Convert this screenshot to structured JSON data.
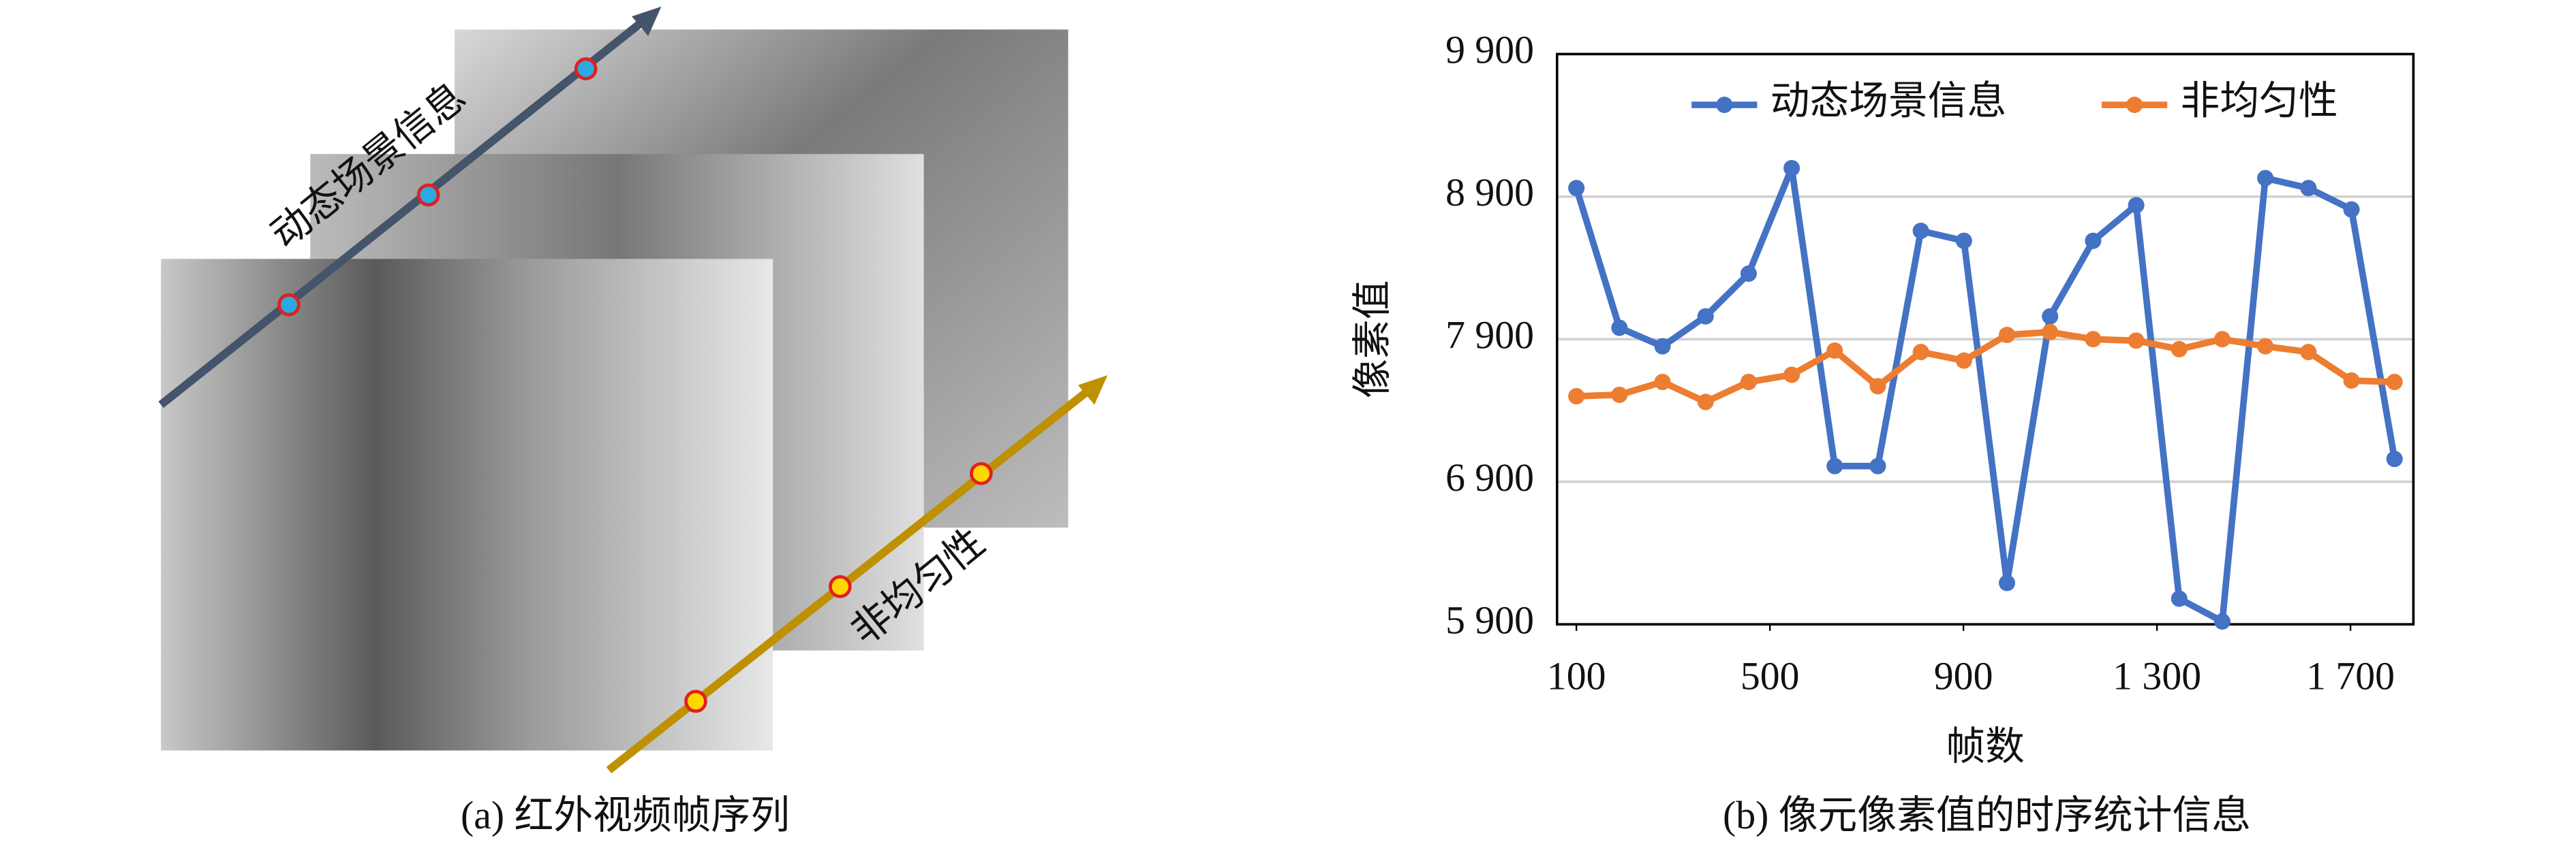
{
  "panel_a": {
    "arrow_labels": [
      "动态场景信息",
      "非均匀性"
    ],
    "caption": "(a) 红外视频帧序列"
  },
  "chart_data": {
    "type": "line",
    "caption": "(b) 像元像素值的时序统计信息",
    "x_label": "帧数",
    "y_label": "像素值",
    "x": [
      100,
      189,
      278,
      367,
      456,
      545,
      634,
      723,
      812,
      901,
      990,
      1079,
      1168,
      1257,
      1346,
      1435,
      1524,
      1613,
      1702,
      1791
    ],
    "series": [
      {
        "name": "动态场景信息",
        "color": "#4472c4",
        "values": [
          8960,
          7980,
          7850,
          8060,
          8360,
          9100,
          7010,
          7010,
          8660,
          8590,
          6190,
          8060,
          8590,
          8840,
          6080,
          5920,
          9030,
          8960,
          8810,
          7060
        ]
      },
      {
        "name": "非均匀性",
        "color": "#ed7d31",
        "values": [
          7500,
          7510,
          7600,
          7460,
          7600,
          7650,
          7820,
          7570,
          7810,
          7750,
          7930,
          7950,
          7900,
          7890,
          7830,
          7900,
          7850,
          7810,
          7610,
          7600
        ]
      }
    ],
    "xlim": [
      60,
      1830
    ],
    "xticks": [
      100,
      500,
      900,
      {
        "value": 1300,
        "label": "1 300"
      },
      {
        "value": 1700,
        "label": "1 700"
      }
    ],
    "ylim": [
      5900,
      9900
    ],
    "yticks": [
      {
        "value": 5900,
        "label": "5 900"
      },
      {
        "value": 6900,
        "label": "6 900"
      },
      {
        "value": 7900,
        "label": "7 900"
      },
      {
        "value": 8900,
        "label": "8 900"
      },
      {
        "value": 9900,
        "label": "9 900"
      }
    ],
    "grid": true,
    "legend": "top"
  }
}
